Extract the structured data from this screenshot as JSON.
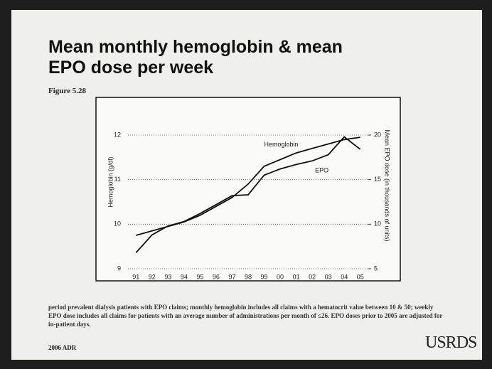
{
  "chart_data": {
    "type": "line",
    "title": "Mean monthly hemoglobin & mean EPO dose per week",
    "subtitle": "Figure 5.28",
    "ylabel": "Hemoglobin (g/dl)",
    "y2label": "Mean EPO dose (in thousands of units)",
    "categories": [
      "91",
      "92",
      "93",
      "94",
      "95",
      "96",
      "97",
      "98",
      "99",
      "00",
      "01",
      "02",
      "03",
      "04",
      "05"
    ],
    "series": [
      {
        "name": "Hemoglobin",
        "color": "#111111",
        "values": [
          9.75,
          9.85,
          9.95,
          10.05,
          10.2,
          10.4,
          10.6,
          10.9,
          11.3,
          11.45,
          11.6,
          11.7,
          11.8,
          11.9,
          11.95
        ]
      },
      {
        "name": "EPO",
        "color": "#111111",
        "axis": "y2",
        "values": [
          6.8,
          8.8,
          9.8,
          10.3,
          11.2,
          12.2,
          13.2,
          13.3,
          15.5,
          16.2,
          16.7,
          17.1,
          17.8,
          19.8,
          18.4
        ]
      }
    ],
    "ylim": [
      9,
      12
    ],
    "yticks": [
      9,
      10,
      11,
      12
    ],
    "y2lim": [
      5,
      20
    ],
    "y2ticks": [
      5,
      10,
      15,
      20
    ],
    "grid": true
  },
  "slide": {
    "footnote": "period prevalent dialysis patients with EPO claims; monthly hemoglobin includes all claims with a hematocrit value between 10 & 50; weekly EPO dose includes all claims for patients with an average number of administrations per month of ≤26. EPO doses prior to 2005 are adjusted for in-patient days.",
    "source": "2006 ADR",
    "logo": "USRDS"
  }
}
